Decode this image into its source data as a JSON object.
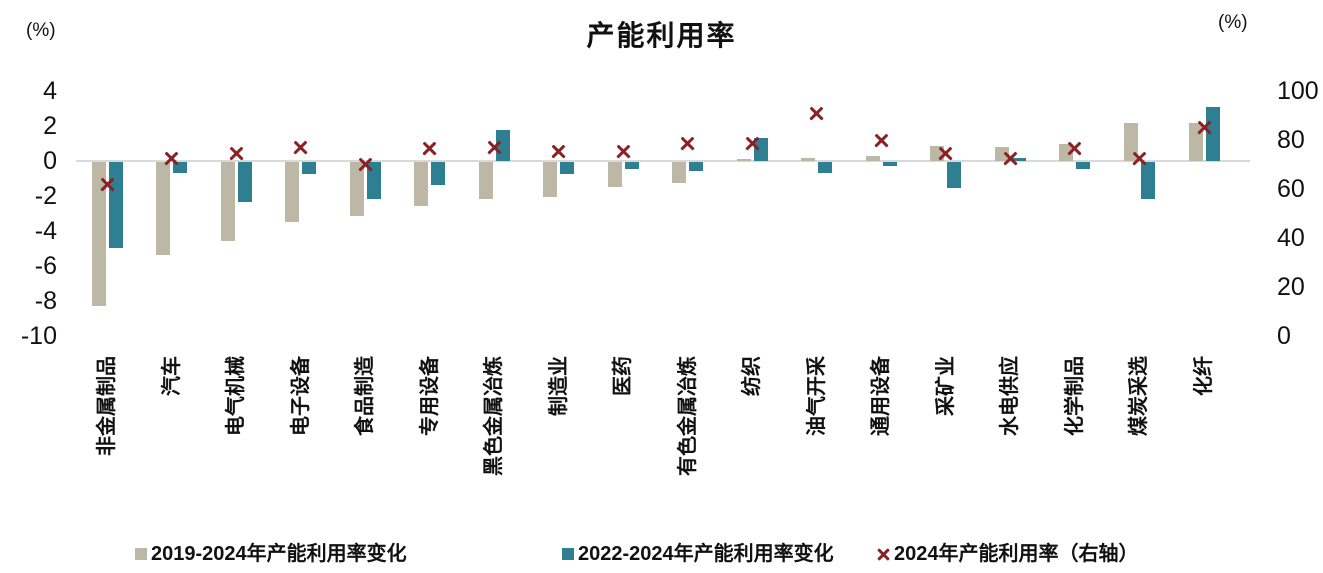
{
  "title": "产能利用率",
  "left_axis": {
    "unit": "(%)",
    "ticks": [
      4,
      2,
      0,
      -2,
      -4,
      -6,
      -8,
      -10
    ],
    "min": -10,
    "max": 4
  },
  "right_axis": {
    "unit": "(%)",
    "ticks": [
      100,
      80,
      60,
      40,
      20,
      0
    ],
    "min": 0,
    "max": 100
  },
  "colors": {
    "bar_2019_2024": "#bdb8a6",
    "bar_2022_2024": "#2e7f91",
    "marker_2024": "#8b2025",
    "zero_line": "#d9d9d9",
    "text": "#111111",
    "background": "#ffffff"
  },
  "chart_data": {
    "type": "bar",
    "title": "产能利用率",
    "grid": false,
    "legend_position": "bottom",
    "left_ylim": [
      -10,
      4
    ],
    "right_ylim": [
      0,
      100
    ],
    "categories": [
      "非金属制品",
      "汽车",
      "电气机械",
      "电子设备",
      "食品制造",
      "专用设备",
      "黑色金属冶炼",
      "制造业",
      "医药",
      "有色金属冶炼",
      "纺织",
      "油气开采",
      "通用设备",
      "采矿业",
      "水电供应",
      "化学制品",
      "煤炭采选",
      "化纤"
    ],
    "series": [
      {
        "name": "2019-2024年产能利用率变化",
        "type": "bar",
        "axis": "left",
        "color": "#bdb8a6",
        "values": [
          -8.2,
          -5.3,
          -4.5,
          -3.4,
          -3.1,
          -2.5,
          -2.1,
          -2.0,
          -1.4,
          -1.2,
          0.1,
          0.15,
          0.3,
          0.85,
          0.8,
          1.0,
          2.2,
          2.2
        ]
      },
      {
        "name": "2022-2024年产能利用率变化",
        "type": "bar",
        "axis": "left",
        "color": "#2e7f91",
        "values": [
          -4.9,
          -0.6,
          -2.3,
          -0.7,
          -2.1,
          -1.3,
          1.8,
          -0.7,
          -0.4,
          -0.5,
          1.3,
          -0.6,
          -0.25,
          -1.5,
          0.2,
          -0.4,
          -2.1,
          3.1
        ]
      },
      {
        "name": "2024年产能利用率（右轴）",
        "type": "scatter",
        "axis": "right",
        "marker": "x",
        "color": "#8b2025",
        "values": [
          62,
          72.5,
          74.5,
          77,
          70,
          76.5,
          77,
          75.5,
          75.5,
          78.5,
          78.5,
          91,
          80,
          74.5,
          72.5,
          76.5,
          72.5,
          85
        ]
      }
    ]
  }
}
